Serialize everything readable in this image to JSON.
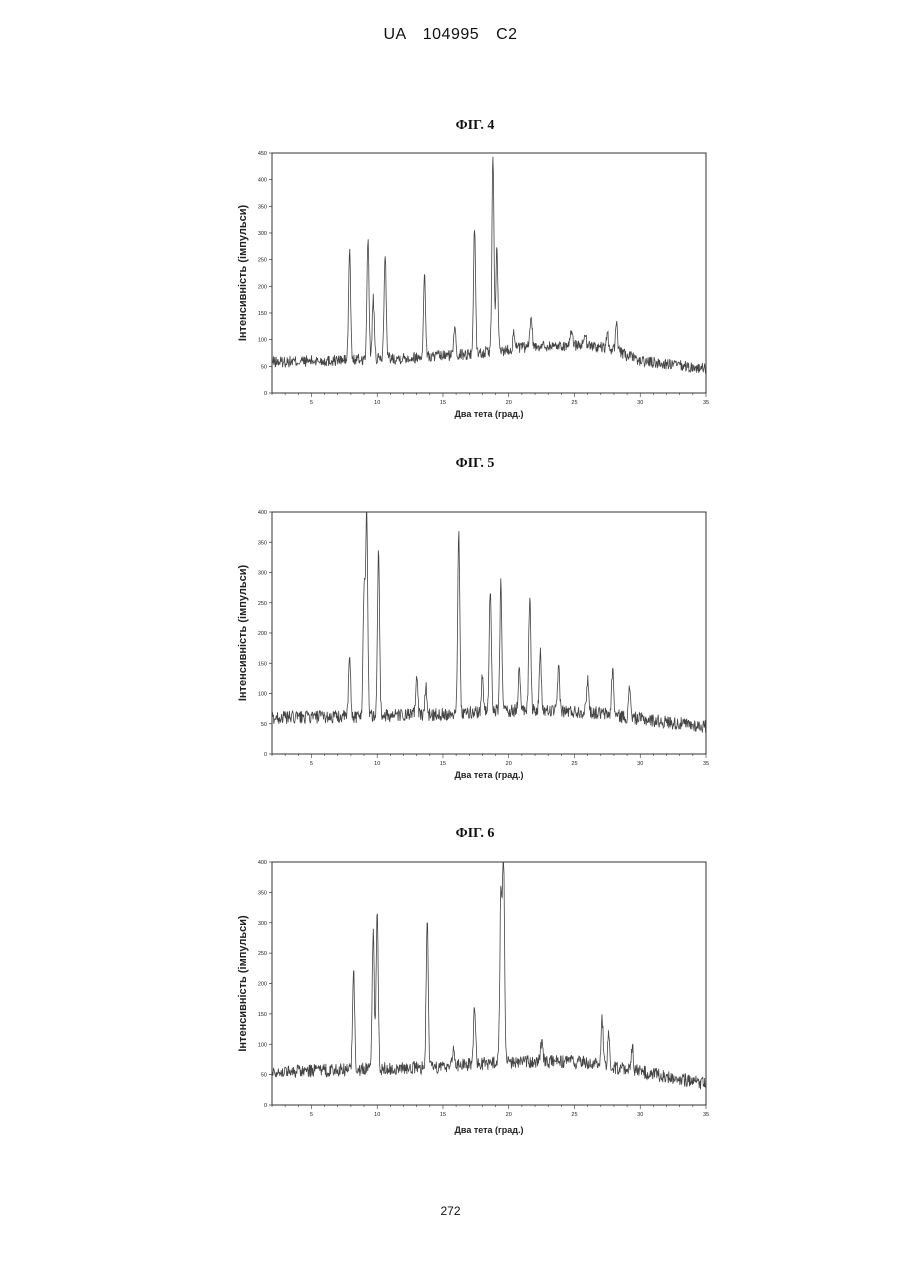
{
  "header": {
    "text": "UA   104995   C2"
  },
  "footer": {
    "page_number": "272"
  },
  "chart_data": [
    {
      "type": "line",
      "title": "ФІГ. 4",
      "xlabel": "Два тета (град.)",
      "ylabel": "Інтенсивність (імпульси)",
      "xlim": [
        2,
        35
      ],
      "ylim": [
        0,
        450
      ],
      "xticks": [
        "5",
        "10",
        "15",
        "20",
        "25",
        "30",
        "35"
      ],
      "yticks": [
        "0",
        "50",
        "100",
        "150",
        "200",
        "250",
        "300",
        "350",
        "400",
        "450"
      ],
      "baseline": [
        [
          2,
          58
        ],
        [
          8,
          62
        ],
        [
          14,
          68
        ],
        [
          18,
          75
        ],
        [
          22,
          88
        ],
        [
          26,
          90
        ],
        [
          28,
          80
        ],
        [
          30,
          60
        ],
        [
          35,
          45
        ]
      ],
      "peaks": [
        {
          "x": 7.9,
          "y": 265
        },
        {
          "x": 9.3,
          "y": 288
        },
        {
          "x": 9.7,
          "y": 175
        },
        {
          "x": 10.6,
          "y": 265
        },
        {
          "x": 13.6,
          "y": 220
        },
        {
          "x": 15.9,
          "y": 130
        },
        {
          "x": 17.4,
          "y": 310
        },
        {
          "x": 18.8,
          "y": 440
        },
        {
          "x": 19.1,
          "y": 270
        },
        {
          "x": 20.4,
          "y": 115
        },
        {
          "x": 21.7,
          "y": 150
        },
        {
          "x": 24.8,
          "y": 120
        },
        {
          "x": 25.8,
          "y": 115
        },
        {
          "x": 27.5,
          "y": 110
        },
        {
          "x": 28.2,
          "y": 135
        }
      ]
    },
    {
      "type": "line",
      "title": "ФІГ. 5",
      "xlabel": "Два тета (град.)",
      "ylabel": "Інтенсивність (імпульси)",
      "xlim": [
        2,
        35
      ],
      "ylim": [
        0,
        400
      ],
      "xticks": [
        "5",
        "10",
        "15",
        "20",
        "25",
        "30",
        "35"
      ],
      "yticks": [
        "0",
        "50",
        "100",
        "150",
        "200",
        "250",
        "300",
        "350",
        "400"
      ],
      "baseline": [
        [
          2,
          60
        ],
        [
          8,
          62
        ],
        [
          14,
          65
        ],
        [
          20,
          72
        ],
        [
          26,
          70
        ],
        [
          30,
          58
        ],
        [
          35,
          45
        ]
      ],
      "peaks": [
        {
          "x": 7.9,
          "y": 160
        },
        {
          "x": 9.2,
          "y": 400
        },
        {
          "x": 9.0,
          "y": 270
        },
        {
          "x": 10.1,
          "y": 340
        },
        {
          "x": 13.0,
          "y": 130
        },
        {
          "x": 13.7,
          "y": 110
        },
        {
          "x": 16.2,
          "y": 375
        },
        {
          "x": 18.0,
          "y": 130
        },
        {
          "x": 18.6,
          "y": 275
        },
        {
          "x": 19.4,
          "y": 280
        },
        {
          "x": 20.8,
          "y": 140
        },
        {
          "x": 21.6,
          "y": 260
        },
        {
          "x": 22.4,
          "y": 165
        },
        {
          "x": 23.8,
          "y": 145
        },
        {
          "x": 26.0,
          "y": 125
        },
        {
          "x": 27.9,
          "y": 140
        },
        {
          "x": 29.2,
          "y": 110
        }
      ]
    },
    {
      "type": "line",
      "title": "ФІГ. 6",
      "xlabel": "Два тета (град.)",
      "ylabel": "Інтенсивність (імпульси)",
      "xlim": [
        2,
        35
      ],
      "ylim": [
        0,
        400
      ],
      "xticks": [
        "5",
        "10",
        "15",
        "20",
        "25",
        "30",
        "35"
      ],
      "yticks": [
        "0",
        "50",
        "100",
        "150",
        "200",
        "250",
        "300",
        "350",
        "400"
      ],
      "baseline": [
        [
          2,
          55
        ],
        [
          8,
          58
        ],
        [
          14,
          62
        ],
        [
          18,
          68
        ],
        [
          22,
          72
        ],
        [
          26,
          70
        ],
        [
          30,
          55
        ],
        [
          35,
          35
        ]
      ],
      "peaks": [
        {
          "x": 8.2,
          "y": 225
        },
        {
          "x": 9.7,
          "y": 285
        },
        {
          "x": 10.0,
          "y": 320
        },
        {
          "x": 13.8,
          "y": 305
        },
        {
          "x": 15.8,
          "y": 95
        },
        {
          "x": 17.4,
          "y": 165
        },
        {
          "x": 19.4,
          "y": 340
        },
        {
          "x": 19.6,
          "y": 410
        },
        {
          "x": 22.5,
          "y": 105
        },
        {
          "x": 27.1,
          "y": 140
        },
        {
          "x": 27.6,
          "y": 115
        },
        {
          "x": 29.4,
          "y": 95
        }
      ]
    }
  ]
}
